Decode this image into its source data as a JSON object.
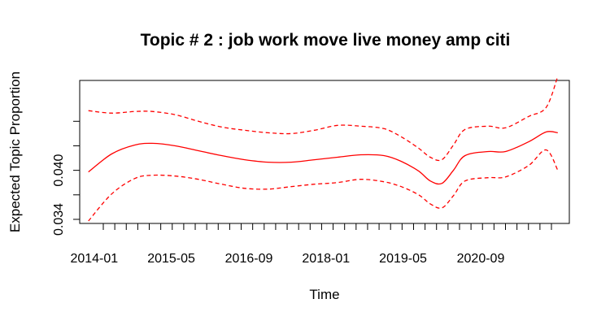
{
  "chart_data": {
    "type": "line",
    "title": "Topic # 2 :  job work move live money amp citi",
    "xlabel": "Time",
    "ylabel": "Expected Topic Proportion",
    "x_tick_labels": [
      "2014-01",
      "2015-05",
      "2016-09",
      "2018-01",
      "2019-05",
      "2020-09"
    ],
    "x_tick_values": [
      2014.0,
      2015.33,
      2016.67,
      2018.0,
      2019.33,
      2020.67
    ],
    "minor_tick_count": 40,
    "y_tick_labels": [
      "0.034",
      "",
      "0.040",
      "",
      ""
    ],
    "y_tick_values": [
      0.034,
      0.037,
      0.04,
      0.043,
      0.046
    ],
    "xlim": [
      2013.75,
      2022.2
    ],
    "ylim": [
      0.0335,
      0.051
    ],
    "grid": false,
    "color": "#ff0000",
    "x": [
      2013.9,
      2014.3,
      2014.7,
      2015.0,
      2015.4,
      2015.8,
      2016.2,
      2016.6,
      2017.0,
      2017.4,
      2017.8,
      2018.2,
      2018.6,
      2019.0,
      2019.3,
      2019.6,
      2019.8,
      2020.0,
      2020.2,
      2020.4,
      2020.8,
      2021.1,
      2021.5,
      2021.8,
      2022.0
    ],
    "series": [
      {
        "role": "estimate",
        "style": "solid",
        "values": [
          0.0398,
          0.042,
          0.0431,
          0.0433,
          0.043,
          0.0424,
          0.0418,
          0.0413,
          0.041,
          0.041,
          0.0413,
          0.0416,
          0.0419,
          0.0418,
          0.0411,
          0.0399,
          0.0387,
          0.0384,
          0.04,
          0.0418,
          0.0423,
          0.0423,
          0.0435,
          0.0447,
          0.0446
        ]
      },
      {
        "role": "upper",
        "style": "dashed",
        "values": [
          0.0473,
          0.047,
          0.0472,
          0.0472,
          0.0468,
          0.046,
          0.0453,
          0.0449,
          0.0446,
          0.0445,
          0.0449,
          0.0455,
          0.0454,
          0.0451,
          0.0441,
          0.0427,
          0.0416,
          0.0413,
          0.0431,
          0.045,
          0.0454,
          0.0452,
          0.0466,
          0.0477,
          0.0515
        ]
      },
      {
        "role": "lower",
        "style": "dashed",
        "values": [
          0.0338,
          0.0371,
          0.039,
          0.0394,
          0.0393,
          0.0389,
          0.0383,
          0.0378,
          0.0377,
          0.038,
          0.0383,
          0.0385,
          0.0389,
          0.0386,
          0.038,
          0.037,
          0.0359,
          0.0354,
          0.0369,
          0.0387,
          0.0391,
          0.0392,
          0.0406,
          0.0425,
          0.04
        ]
      }
    ]
  }
}
